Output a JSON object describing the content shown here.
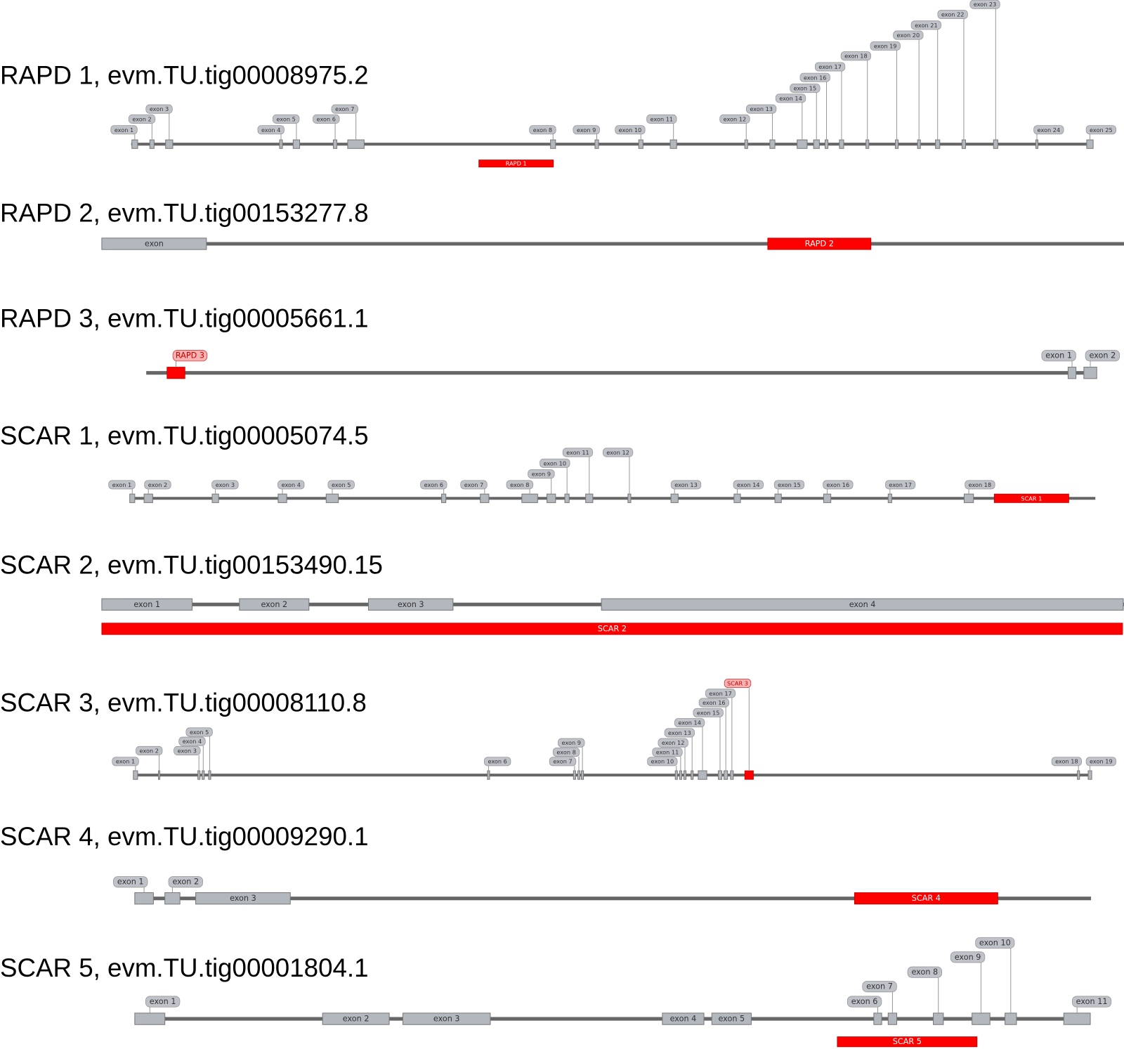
{
  "tracks": [
    {
      "title": "RAPD 1, evm.TU.tig00008975.2",
      "exons": [
        "exon 1",
        "exon 2",
        "exon 3",
        "exon 4",
        "exon 5",
        "exon 6",
        "exon 7",
        "exon 8",
        "exon 9",
        "exon 10",
        "exon 11",
        "exon 12",
        "exon 13",
        "exon 14",
        "exon 15",
        "exon 16",
        "exon 17",
        "exon 18",
        "exon 19",
        "exon 20",
        "exon 21",
        "exon 22",
        "exon 23",
        "exon 24",
        "exon 25"
      ],
      "marker": "RAPD 1"
    },
    {
      "title": "RAPD 2, evm.TU.tig00153277.8",
      "exons": [
        "exon"
      ],
      "marker": "RAPD 2"
    },
    {
      "title": "RAPD 3, evm.TU.tig00005661.1",
      "exons": [
        "exon 1",
        "exon 2"
      ],
      "marker": "RAPD 3"
    },
    {
      "title": "SCAR 1, evm.TU.tig00005074.5",
      "exons": [
        "exon 1",
        "exon 2",
        "exon 3",
        "exon 4",
        "exon 5",
        "exon 6",
        "exon 7",
        "exon 8",
        "exon 9",
        "exon 10",
        "exon 11",
        "exon 12",
        "exon 13",
        "exon 14",
        "exon 15",
        "exon 16",
        "exon 17",
        "exon 18"
      ],
      "marker": "SCAR 1"
    },
    {
      "title": "SCAR 2, evm.TU.tig00153490.15",
      "exons": [
        "exon 1",
        "exon 2",
        "exon 3",
        "exon 4"
      ],
      "marker": "SCAR 2"
    },
    {
      "title": "SCAR 3, evm.TU.tig00008110.8",
      "exons": [
        "exon 1",
        "exon 2",
        "exon 3",
        "exon 4",
        "exon 5",
        "exon 6",
        "exon 7",
        "exon 8",
        "exon 9",
        "exon 10",
        "exon 11",
        "exon 12",
        "exon 13",
        "exon 14",
        "exon 15",
        "exon 16",
        "exon 17",
        "exon 18",
        "exon 19"
      ],
      "marker": "SCAR 3"
    },
    {
      "title": "SCAR 4, evm.TU.tig00009290.1",
      "exons": [
        "exon 1",
        "exon 2",
        "exon 3"
      ],
      "marker": "SCAR 4"
    },
    {
      "title": "SCAR 5, evm.TU.tig00001804.1",
      "exons": [
        "exon 1",
        "exon 2",
        "exon 3",
        "exon 4",
        "exon 5",
        "exon 6",
        "exon 7",
        "exon 8",
        "exon 9",
        "exon 10",
        "exon 11"
      ],
      "marker": "SCAR 5"
    }
  ]
}
